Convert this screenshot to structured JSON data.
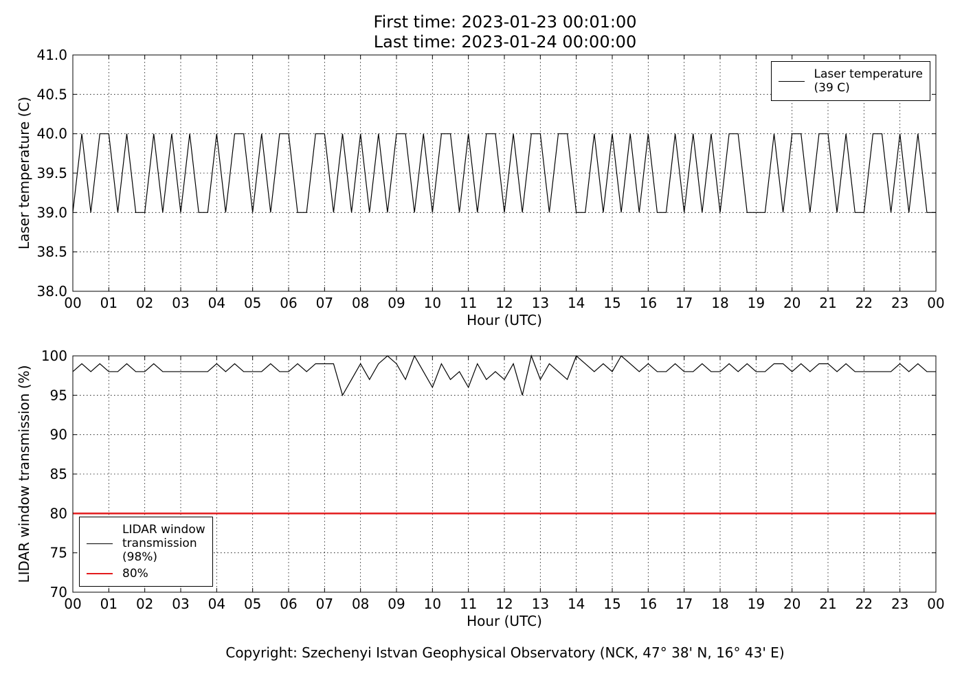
{
  "chart_data": [
    {
      "type": "line",
      "title": "First time: 2023-01-23 00:01:00\nLast time: 2023-01-24 00:00:00",
      "x_label": "Hour (UTC)",
      "y_label": "Laser temperature (C)",
      "x": [
        0,
        0.25,
        0.5,
        0.75,
        1,
        1.25,
        1.5,
        1.75,
        2,
        2.25,
        2.5,
        2.75,
        3,
        3.25,
        3.5,
        3.75,
        4,
        4.25,
        4.5,
        4.75,
        5,
        5.25,
        5.5,
        5.75,
        6,
        6.25,
        6.5,
        6.75,
        7,
        7.25,
        7.5,
        7.75,
        8,
        8.25,
        8.5,
        8.75,
        9,
        9.25,
        9.5,
        9.75,
        10,
        10.25,
        10.5,
        10.75,
        11,
        11.25,
        11.5,
        11.75,
        12,
        12.25,
        12.5,
        12.75,
        13,
        13.25,
        13.5,
        13.75,
        14,
        14.25,
        14.5,
        14.75,
        15,
        15.25,
        15.5,
        15.75,
        16,
        16.25,
        16.5,
        16.75,
        17,
        17.25,
        17.5,
        17.75,
        18,
        18.25,
        18.5,
        18.75,
        19,
        19.25,
        19.5,
        19.75,
        20,
        20.25,
        20.5,
        20.75,
        21,
        21.25,
        21.5,
        21.75,
        22,
        22.25,
        22.5,
        22.75,
        23,
        23.25,
        23.5,
        23.75,
        24
      ],
      "series": [
        {
          "name": "Laser temperature\n(39 C)",
          "color": "#000000",
          "values": [
            39,
            40,
            39,
            40,
            40,
            39,
            40,
            39,
            39,
            40,
            39,
            40,
            39,
            40,
            39,
            39,
            40,
            39,
            40,
            40,
            39,
            40,
            39,
            40,
            40,
            39,
            39,
            40,
            40,
            39,
            40,
            39,
            40,
            39,
            40,
            39,
            40,
            40,
            39,
            40,
            39,
            40,
            40,
            39,
            40,
            39,
            40,
            40,
            39,
            40,
            39,
            40,
            40,
            39,
            40,
            40,
            39,
            39,
            40,
            39,
            40,
            39,
            40,
            39,
            40,
            39,
            39,
            40,
            39,
            40,
            39,
            40,
            39,
            40,
            40,
            39,
            39,
            39,
            40,
            39,
            40,
            40,
            39,
            40,
            40,
            39,
            40,
            39,
            39,
            40,
            40,
            39,
            40,
            39,
            40,
            39,
            39
          ]
        }
      ],
      "xlim": [
        0,
        24
      ],
      "xticks": [
        {
          "value": 0,
          "label": "00"
        },
        {
          "value": 1,
          "label": "01"
        },
        {
          "value": 2,
          "label": "02"
        },
        {
          "value": 3,
          "label": "03"
        },
        {
          "value": 4,
          "label": "04"
        },
        {
          "value": 5,
          "label": "05"
        },
        {
          "value": 6,
          "label": "06"
        },
        {
          "value": 7,
          "label": "07"
        },
        {
          "value": 8,
          "label": "08"
        },
        {
          "value": 9,
          "label": "09"
        },
        {
          "value": 10,
          "label": "10"
        },
        {
          "value": 11,
          "label": "11"
        },
        {
          "value": 12,
          "label": "12"
        },
        {
          "value": 13,
          "label": "13"
        },
        {
          "value": 14,
          "label": "14"
        },
        {
          "value": 15,
          "label": "15"
        },
        {
          "value": 16,
          "label": "16"
        },
        {
          "value": 17,
          "label": "17"
        },
        {
          "value": 18,
          "label": "18"
        },
        {
          "value": 19,
          "label": "19"
        },
        {
          "value": 20,
          "label": "20"
        },
        {
          "value": 21,
          "label": "21"
        },
        {
          "value": 22,
          "label": "22"
        },
        {
          "value": 23,
          "label": "23"
        },
        {
          "value": 24,
          "label": "00"
        }
      ],
      "ylim": [
        38,
        41
      ],
      "yticks": [
        {
          "value": 38,
          "label": "38.0"
        },
        {
          "value": 38.5,
          "label": "38.5"
        },
        {
          "value": 39,
          "label": "39.0"
        },
        {
          "value": 39.5,
          "label": "39.5"
        },
        {
          "value": 40,
          "label": "40.0"
        },
        {
          "value": 40.5,
          "label": "40.5"
        },
        {
          "value": 41,
          "label": "41.0"
        }
      ],
      "grid": true,
      "legend": "upper right"
    },
    {
      "type": "line",
      "x_label": "Hour (UTC)",
      "y_label": "LIDAR window transmission (%)",
      "x": [
        0,
        0.25,
        0.5,
        0.75,
        1,
        1.25,
        1.5,
        1.75,
        2,
        2.25,
        2.5,
        2.75,
        3,
        3.25,
        3.5,
        3.75,
        4,
        4.25,
        4.5,
        4.75,
        5,
        5.25,
        5.5,
        5.75,
        6,
        6.25,
        6.5,
        6.75,
        7,
        7.25,
        7.5,
        7.75,
        8,
        8.25,
        8.5,
        8.75,
        9,
        9.25,
        9.5,
        9.75,
        10,
        10.25,
        10.5,
        10.75,
        11,
        11.25,
        11.5,
        11.75,
        12,
        12.25,
        12.5,
        12.75,
        13,
        13.25,
        13.5,
        13.75,
        14,
        14.25,
        14.5,
        14.75,
        15,
        15.25,
        15.5,
        15.75,
        16,
        16.25,
        16.5,
        16.75,
        17,
        17.25,
        17.5,
        17.75,
        18,
        18.25,
        18.5,
        18.75,
        19,
        19.25,
        19.5,
        19.75,
        20,
        20.25,
        20.5,
        20.75,
        21,
        21.25,
        21.5,
        21.75,
        22,
        22.25,
        22.5,
        22.75,
        23,
        23.25,
        23.5,
        23.75,
        24
      ],
      "series": [
        {
          "name": "LIDAR window\ntransmission\n(98%)",
          "color": "#000000",
          "values": [
            98,
            99,
            98,
            99,
            98,
            98,
            99,
            98,
            98,
            99,
            98,
            98,
            98,
            98,
            98,
            98,
            99,
            98,
            99,
            98,
            98,
            98,
            99,
            98,
            98,
            99,
            98,
            99,
            99,
            99,
            95,
            97,
            99,
            97,
            99,
            100,
            99,
            97,
            100,
            98,
            96,
            99,
            97,
            98,
            96,
            99,
            97,
            98,
            97,
            99,
            95,
            100,
            97,
            99,
            98,
            97,
            100,
            99,
            98,
            99,
            98,
            100,
            99,
            98,
            99,
            98,
            98,
            99,
            98,
            98,
            99,
            98,
            98,
            99,
            98,
            99,
            98,
            98,
            99,
            99,
            98,
            99,
            98,
            99,
            99,
            98,
            99,
            98,
            98,
            98,
            98,
            98,
            99,
            98,
            99,
            98,
            98
          ]
        },
        {
          "name": "80%",
          "color": "#e31a1c",
          "values": [
            80,
            80,
            80,
            80,
            80,
            80,
            80,
            80,
            80,
            80,
            80,
            80,
            80,
            80,
            80,
            80,
            80,
            80,
            80,
            80,
            80,
            80,
            80,
            80,
            80,
            80,
            80,
            80,
            80,
            80,
            80,
            80,
            80,
            80,
            80,
            80,
            80,
            80,
            80,
            80,
            80,
            80,
            80,
            80,
            80,
            80,
            80,
            80,
            80,
            80,
            80,
            80,
            80,
            80,
            80,
            80,
            80,
            80,
            80,
            80,
            80,
            80,
            80,
            80,
            80,
            80,
            80,
            80,
            80,
            80,
            80,
            80,
            80,
            80,
            80,
            80,
            80,
            80,
            80,
            80,
            80,
            80,
            80,
            80,
            80,
            80,
            80,
            80,
            80,
            80,
            80,
            80,
            80,
            80,
            80,
            80,
            80
          ]
        }
      ],
      "xlim": [
        0,
        24
      ],
      "xticks": [
        {
          "value": 0,
          "label": "00"
        },
        {
          "value": 1,
          "label": "01"
        },
        {
          "value": 2,
          "label": "02"
        },
        {
          "value": 3,
          "label": "03"
        },
        {
          "value": 4,
          "label": "04"
        },
        {
          "value": 5,
          "label": "05"
        },
        {
          "value": 6,
          "label": "06"
        },
        {
          "value": 7,
          "label": "07"
        },
        {
          "value": 8,
          "label": "08"
        },
        {
          "value": 9,
          "label": "09"
        },
        {
          "value": 10,
          "label": "10"
        },
        {
          "value": 11,
          "label": "11"
        },
        {
          "value": 12,
          "label": "12"
        },
        {
          "value": 13,
          "label": "13"
        },
        {
          "value": 14,
          "label": "14"
        },
        {
          "value": 15,
          "label": "15"
        },
        {
          "value": 16,
          "label": "16"
        },
        {
          "value": 17,
          "label": "17"
        },
        {
          "value": 18,
          "label": "18"
        },
        {
          "value": 19,
          "label": "19"
        },
        {
          "value": 20,
          "label": "20"
        },
        {
          "value": 21,
          "label": "21"
        },
        {
          "value": 22,
          "label": "22"
        },
        {
          "value": 23,
          "label": "23"
        },
        {
          "value": 24,
          "label": "00"
        }
      ],
      "ylim": [
        70,
        100
      ],
      "yticks": [
        70,
        75,
        80,
        85,
        90,
        95,
        100
      ],
      "grid": true,
      "legend": "lower left"
    }
  ],
  "footer": "Copyright: Szechenyi Istvan Geophysical Observatory (NCK, 47° 38' N, 16° 43' E)"
}
